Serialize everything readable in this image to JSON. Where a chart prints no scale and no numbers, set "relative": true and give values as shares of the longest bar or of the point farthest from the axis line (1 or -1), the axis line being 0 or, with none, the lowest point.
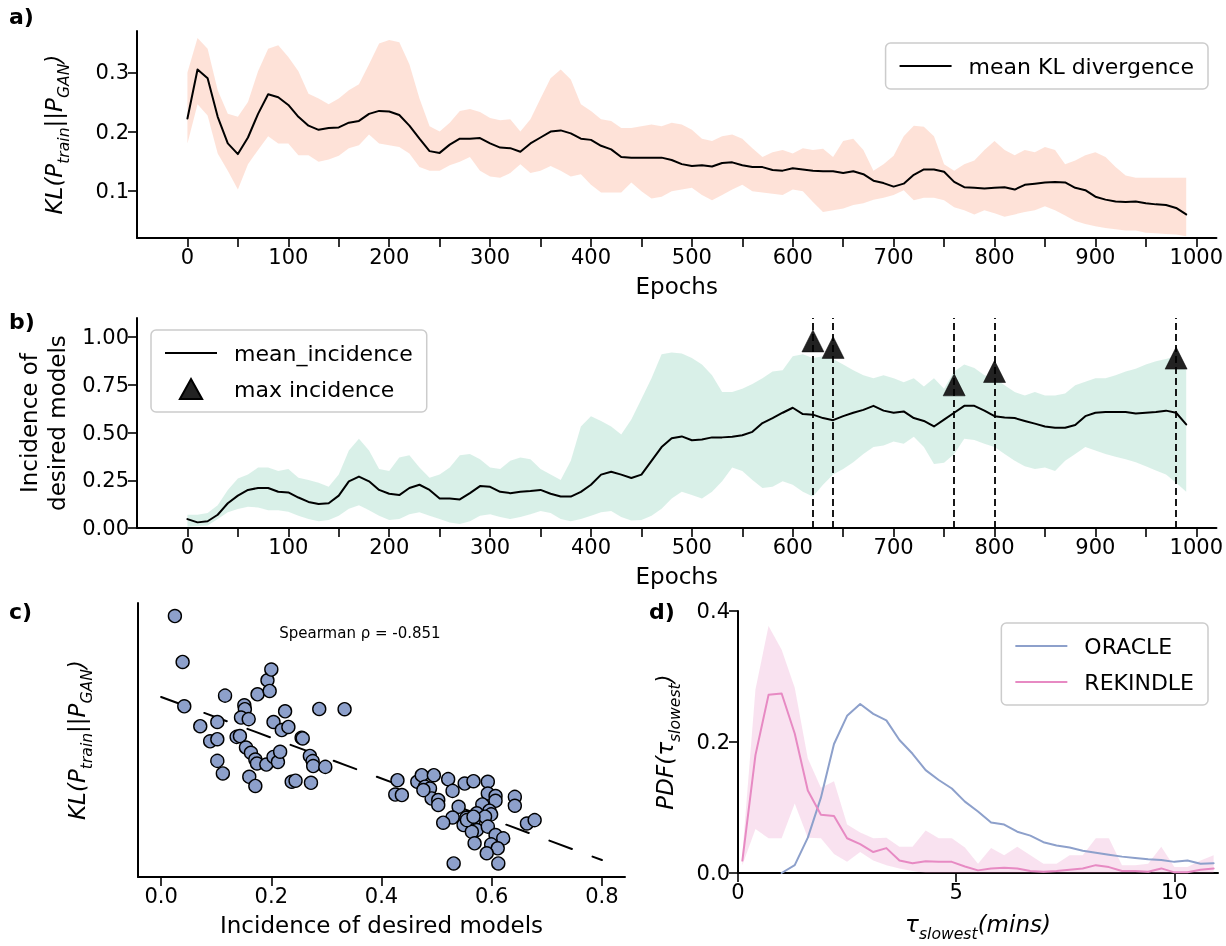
{
  "chart_data": [
    {
      "type": "line",
      "title": "a)",
      "xlabel": "Epochs",
      "ylabel": "KL(P$_{train}$||P$_{GAN}$)",
      "legend": "top right",
      "marker": "none",
      "xlim": [
        -50,
        1020
      ],
      "ylim": [
        0.02,
        0.37
      ],
      "xticks": [
        0,
        {
          "value": 50,
          "label": null
        },
        100,
        {
          "value": 150,
          "label": null
        },
        200,
        {
          "value": 250,
          "label": null
        },
        300,
        {
          "value": 350,
          "label": null
        },
        400,
        {
          "value": 450,
          "label": null
        },
        500,
        {
          "value": 550,
          "label": null
        },
        600,
        {
          "value": 650,
          "label": null
        },
        700,
        {
          "value": 750,
          "label": null
        },
        800,
        {
          "value": 850,
          "label": null
        },
        900,
        {
          "value": 950,
          "label": null
        },
        1000
      ],
      "yticks": [
        0.1,
        0.2,
        0.3
      ],
      "x": [
        0,
        10,
        20,
        30,
        40,
        50,
        60,
        70,
        80,
        90,
        100,
        110,
        120,
        130,
        140,
        150,
        160,
        170,
        180,
        190,
        200,
        210,
        220,
        230,
        240,
        250,
        260,
        270,
        280,
        290,
        300,
        310,
        320,
        330,
        340,
        350,
        360,
        370,
        380,
        390,
        400,
        410,
        420,
        430,
        440,
        450,
        460,
        470,
        480,
        490,
        500,
        510,
        520,
        530,
        540,
        550,
        560,
        570,
        580,
        590,
        600,
        610,
        620,
        630,
        640,
        650,
        660,
        670,
        680,
        690,
        700,
        710,
        720,
        730,
        740,
        750,
        760,
        770,
        780,
        790,
        800,
        810,
        820,
        830,
        840,
        850,
        860,
        870,
        880,
        890,
        900,
        910,
        920,
        930,
        940,
        950,
        960,
        970,
        980,
        990
      ],
      "series": [
        {
          "name": "mean KL divergence",
          "color": "#000000",
          "values": [
            0.222,
            0.305,
            0.29,
            0.225,
            0.18,
            0.162,
            0.19,
            0.23,
            0.263,
            0.258,
            0.245,
            0.225,
            0.21,
            0.203,
            0.206,
            0.207,
            0.215,
            0.218,
            0.23,
            0.235,
            0.234,
            0.228,
            0.21,
            0.188,
            0.167,
            0.164,
            0.178,
            0.188,
            0.188,
            0.189,
            0.18,
            0.173,
            0.172,
            0.166,
            0.18,
            0.19,
            0.2,
            0.202,
            0.197,
            0.188,
            0.186,
            0.176,
            0.17,
            0.157,
            0.156,
            0.156,
            0.156,
            0.156,
            0.152,
            0.145,
            0.142,
            0.143,
            0.141,
            0.147,
            0.148,
            0.143,
            0.14,
            0.14,
            0.135,
            0.134,
            0.138,
            0.136,
            0.134,
            0.133,
            0.133,
            0.13,
            0.133,
            0.128,
            0.117,
            0.113,
            0.107,
            0.112,
            0.127,
            0.136,
            0.136,
            0.132,
            0.115,
            0.106,
            0.105,
            0.104,
            0.105,
            0.106,
            0.102,
            0.11,
            0.112,
            0.114,
            0.115,
            0.114,
            0.105,
            0.101,
            0.09,
            0.085,
            0.082,
            0.081,
            0.082,
            0.079,
            0.077,
            0.076,
            0.071,
            0.06
          ],
          "upper": [
            0.3,
            0.358,
            0.34,
            0.27,
            0.23,
            0.225,
            0.25,
            0.302,
            0.34,
            0.346,
            0.326,
            0.302,
            0.264,
            0.256,
            0.246,
            0.256,
            0.27,
            0.28,
            0.314,
            0.349,
            0.355,
            0.351,
            0.314,
            0.256,
            0.209,
            0.2,
            0.215,
            0.235,
            0.238,
            0.233,
            0.223,
            0.219,
            0.221,
            0.2,
            0.221,
            0.256,
            0.29,
            0.305,
            0.288,
            0.246,
            0.235,
            0.221,
            0.218,
            0.206,
            0.206,
            0.209,
            0.212,
            0.209,
            0.215,
            0.212,
            0.203,
            0.188,
            0.184,
            0.192,
            0.195,
            0.188,
            0.172,
            0.157,
            0.165,
            0.169,
            0.163,
            0.172,
            0.169,
            0.171,
            0.157,
            0.184,
            0.188,
            0.169,
            0.134,
            0.145,
            0.159,
            0.192,
            0.21,
            0.208,
            0.192,
            0.145,
            0.134,
            0.145,
            0.151,
            0.169,
            0.184,
            0.169,
            0.16,
            0.169,
            0.165,
            0.174,
            0.169,
            0.145,
            0.151,
            0.16,
            0.165,
            0.157,
            0.14,
            0.126,
            0.122,
            0.122,
            0.122,
            0.122,
            0.122,
            0.122
          ],
          "lower": [
            0.18,
            0.246,
            0.227,
            0.163,
            0.134,
            0.102,
            0.145,
            0.169,
            0.192,
            0.18,
            0.18,
            0.16,
            0.16,
            0.149,
            0.153,
            0.159,
            0.172,
            0.177,
            0.195,
            0.18,
            0.177,
            0.174,
            0.163,
            0.14,
            0.134,
            0.134,
            0.143,
            0.149,
            0.157,
            0.134,
            0.124,
            0.122,
            0.13,
            0.145,
            0.13,
            0.134,
            0.142,
            0.134,
            0.124,
            0.128,
            0.11,
            0.097,
            0.097,
            0.097,
            0.114,
            0.099,
            0.087,
            0.09,
            0.099,
            0.102,
            0.105,
            0.093,
            0.084,
            0.093,
            0.102,
            0.11,
            0.099,
            0.097,
            0.095,
            0.093,
            0.102,
            0.099,
            0.081,
            0.064,
            0.067,
            0.07,
            0.076,
            0.079,
            0.085,
            0.088,
            0.093,
            0.101,
            0.084,
            0.088,
            0.088,
            0.084,
            0.072,
            0.067,
            0.06,
            0.067,
            0.062,
            0.056,
            0.06,
            0.064,
            0.067,
            0.074,
            0.067,
            0.058,
            0.049,
            0.044,
            0.04,
            0.037,
            0.035,
            0.033,
            0.033,
            0.029,
            0.028,
            0.027,
            0.026,
            0.023
          ]
        }
      ]
    },
    {
      "type": "line",
      "title": "b)",
      "xlabel": "Epochs",
      "ylabel": "Incidence of\ndesired models",
      "legend": "top left",
      "marker": "none",
      "xlim": [
        -50,
        1020
      ],
      "ylim": [
        0,
        1.1
      ],
      "xticks": [
        0,
        {
          "value": 50,
          "label": null
        },
        100,
        {
          "value": 150,
          "label": null
        },
        200,
        {
          "value": 250,
          "label": null
        },
        300,
        {
          "value": 350,
          "label": null
        },
        400,
        {
          "value": 450,
          "label": null
        },
        500,
        {
          "value": 550,
          "label": null
        },
        600,
        {
          "value": 650,
          "label": null
        },
        700,
        {
          "value": 750,
          "label": null
        },
        800,
        {
          "value": 850,
          "label": null
        },
        900,
        {
          "value": 950,
          "label": null
        },
        1000
      ],
      "yticks": [
        {
          "value": 0,
          "label": "0.00"
        },
        0.25,
        {
          "value": 0.5,
          "label": "0.50"
        },
        0.75,
        {
          "value": 1,
          "label": "1.00"
        }
      ],
      "x": [
        0,
        10,
        20,
        30,
        40,
        50,
        60,
        70,
        80,
        90,
        100,
        110,
        120,
        130,
        140,
        150,
        160,
        170,
        180,
        190,
        200,
        210,
        220,
        230,
        240,
        250,
        260,
        270,
        280,
        290,
        300,
        310,
        320,
        330,
        340,
        350,
        360,
        370,
        380,
        390,
        400,
        410,
        420,
        430,
        440,
        450,
        460,
        470,
        480,
        490,
        500,
        510,
        520,
        530,
        540,
        550,
        560,
        570,
        580,
        590,
        600,
        610,
        620,
        630,
        640,
        650,
        660,
        670,
        680,
        690,
        700,
        710,
        720,
        730,
        740,
        750,
        760,
        770,
        780,
        790,
        800,
        810,
        820,
        830,
        840,
        850,
        860,
        870,
        880,
        890,
        900,
        910,
        920,
        930,
        940,
        950,
        960,
        970,
        980,
        990
      ],
      "ref_lines": [
        {
          "axis": "x",
          "value": 620,
          "color": "#000000",
          "line_style": "dashed"
        },
        {
          "axis": "x",
          "value": 640,
          "color": "#000000",
          "line_style": "dashed"
        },
        {
          "axis": "x",
          "value": 760,
          "color": "#000000",
          "line_style": "dashed"
        },
        {
          "axis": "x",
          "value": 800,
          "color": "#000000",
          "line_style": "dashed"
        },
        {
          "axis": "x",
          "value": 980,
          "color": "#000000",
          "line_style": "dashed"
        }
      ],
      "series": [
        {
          "name": "mean_incidence",
          "color": "#000000",
          "values": [
            0.047,
            0.03,
            0.036,
            0.07,
            0.13,
            0.17,
            0.2,
            0.21,
            0.21,
            0.19,
            0.187,
            0.16,
            0.137,
            0.126,
            0.13,
            0.17,
            0.245,
            0.27,
            0.245,
            0.2,
            0.18,
            0.173,
            0.21,
            0.227,
            0.2,
            0.155,
            0.155,
            0.15,
            0.183,
            0.22,
            0.216,
            0.19,
            0.183,
            0.19,
            0.194,
            0.2,
            0.18,
            0.165,
            0.165,
            0.19,
            0.227,
            0.28,
            0.295,
            0.28,
            0.262,
            0.28,
            0.352,
            0.424,
            0.47,
            0.48,
            0.46,
            0.464,
            0.475,
            0.475,
            0.478,
            0.486,
            0.504,
            0.55,
            0.576,
            0.604,
            0.63,
            0.597,
            0.594,
            0.576,
            0.565,
            0.586,
            0.604,
            0.619,
            0.64,
            0.615,
            0.604,
            0.611,
            0.576,
            0.561,
            0.532,
            0.568,
            0.604,
            0.64,
            0.64,
            0.615,
            0.586,
            0.579,
            0.576,
            0.561,
            0.547,
            0.532,
            0.525,
            0.525,
            0.54,
            0.586,
            0.604,
            0.608,
            0.608,
            0.608,
            0.6,
            0.604,
            0.608,
            0.615,
            0.604,
            0.543
          ],
          "upper": [
            0.07,
            0.07,
            0.079,
            0.12,
            0.2,
            0.26,
            0.28,
            0.317,
            0.317,
            0.299,
            0.309,
            0.263,
            0.252,
            0.237,
            0.216,
            0.281,
            0.406,
            0.468,
            0.406,
            0.309,
            0.299,
            0.37,
            0.381,
            0.317,
            0.263,
            0.281,
            0.317,
            0.381,
            0.388,
            0.36,
            0.317,
            0.309,
            0.352,
            0.37,
            0.36,
            0.309,
            0.281,
            0.252,
            0.352,
            0.532,
            0.586,
            0.561,
            0.532,
            0.49,
            0.568,
            0.676,
            0.784,
            0.91,
            0.92,
            0.914,
            0.89,
            0.856,
            0.8,
            0.712,
            0.712,
            0.73,
            0.755,
            0.784,
            0.82,
            0.827,
            0.9,
            0.91,
            0.89,
            0.9,
            0.885,
            0.856,
            0.827,
            0.8,
            0.784,
            0.8,
            0.784,
            0.763,
            0.784,
            0.741,
            0.784,
            0.73,
            0.82,
            0.856,
            0.838,
            0.8,
            0.784,
            0.748,
            0.712,
            0.694,
            0.712,
            0.694,
            0.694,
            0.705,
            0.748,
            0.766,
            0.784,
            0.784,
            0.8,
            0.82,
            0.834,
            0.856,
            0.874,
            0.885,
            0.9,
            0.827
          ],
          "lower": [
            0.007,
            0.011,
            0.014,
            0.047,
            0.083,
            0.1,
            0.112,
            0.108,
            0.094,
            0.094,
            0.086,
            0.065,
            0.047,
            0.036,
            0.043,
            0.065,
            0.101,
            0.119,
            0.094,
            0.065,
            0.043,
            0.047,
            0.072,
            0.083,
            0.065,
            0.047,
            0.029,
            0.022,
            0.036,
            0.065,
            0.072,
            0.058,
            0.047,
            0.058,
            0.072,
            0.09,
            0.079,
            0.047,
            0.036,
            0.047,
            0.065,
            0.083,
            0.09,
            0.058,
            0.04,
            0.043,
            0.065,
            0.101,
            0.155,
            0.19,
            0.173,
            0.155,
            0.19,
            0.245,
            0.317,
            0.299,
            0.252,
            0.21,
            0.216,
            0.245,
            0.227,
            0.19,
            0.165,
            0.227,
            0.281,
            0.309,
            0.345,
            0.388,
            0.424,
            0.432,
            0.453,
            0.442,
            0.478,
            0.424,
            0.335,
            0.342,
            0.388,
            0.468,
            0.461,
            0.442,
            0.424,
            0.388,
            0.352,
            0.324,
            0.31,
            0.317,
            0.299,
            0.352,
            0.388,
            0.424,
            0.406,
            0.388,
            0.374,
            0.36,
            0.345,
            0.324,
            0.302,
            0.28,
            0.237,
            0.19
          ]
        },
        {
          "name": "max incidence",
          "type": "scatter",
          "marker": "triangle",
          "color": "#222222",
          "x": [
            620,
            640,
            760,
            800,
            980
          ],
          "values": [
            0.98,
            0.946,
            0.75,
            0.82,
            0.89
          ]
        }
      ]
    },
    {
      "type": "scatter",
      "title": "c)",
      "xlabel": "Incidence of desired models",
      "ylabel": "KL(P$_{train}$||P$_{GAN}$)",
      "marker": "circle",
      "relative": true,
      "annotations": [
        "Spearman ρ = -0.851"
      ],
      "xlim": [
        -0.042,
        0.842
      ],
      "xticks": [
        {
          "value": 0,
          "label": "0.0"
        },
        0.2,
        0.4,
        0.6,
        0.8
      ],
      "series": [
        {
          "color": "#8da0cb",
          "x": [
            0.025,
            0.039,
            0.042,
            0.071,
            0.089,
            0.102,
            0.102,
            0.102,
            0.112,
            0.116,
            0.137,
            0.143,
            0.151,
            0.152,
            0.145,
            0.159,
            0.154,
            0.163,
            0.171,
            0.174,
            0.191,
            0.16,
            0.171,
            0.175,
            0.193,
            0.197,
            0.2,
            0.204,
            0.204,
            0.212,
            0.216,
            0.219,
            0.225,
            0.231,
            0.237,
            0.244,
            0.255,
            0.257,
            0.27,
            0.275,
            0.276,
            0.298,
            0.272,
            0.287,
            0.333,
            0.429,
            0.425,
            0.437,
            0.465,
            0.473,
            0.479,
            0.488,
            0.495,
            0.491,
            0.503,
            0.503,
            0.521,
            0.529,
            0.54,
            0.551,
            0.567,
            0.593,
            0.593,
            0.607,
            0.607,
            0.583,
            0.573,
            0.596,
            0.599,
            0.588,
            0.554,
            0.549,
            0.567,
            0.573,
            0.564,
            0.529,
            0.512,
            0.593,
            0.607,
            0.621,
            0.599,
            0.611,
            0.591,
            0.569,
            0.642,
            0.642,
            0.664,
            0.678,
            0.531,
            0.612,
            0.476,
            0.555,
            0.567
          ],
          "values": [
            1.0,
            0.824,
            0.654,
            0.578,
            0.52,
            0.594,
            0.528,
            0.445,
            0.397,
            0.695,
            0.537,
            0.54,
            0.658,
            0.643,
            0.611,
            0.605,
            0.496,
            0.476,
            0.45,
            0.435,
            0.431,
            0.384,
            0.349,
            0.7,
            0.754,
            0.713,
            0.795,
            0.594,
            0.46,
            0.441,
            0.48,
            0.563,
            0.635,
            0.575,
            0.365,
            0.369,
            0.534,
            0.531,
            0.464,
            0.444,
            0.425,
            0.422,
            0.361,
            0.644,
            0.643,
            0.371,
            0.316,
            0.314,
            0.365,
            0.39,
            0.346,
            0.339,
            0.39,
            0.301,
            0.295,
            0.276,
            0.375,
            0.33,
            0.269,
            0.358,
            0.367,
            0.365,
            0.32,
            0.31,
            0.292,
            0.278,
            0.244,
            0.254,
            0.24,
            0.231,
            0.227,
            0.199,
            0.212,
            0.18,
            0.173,
            0.228,
            0.208,
            0.193,
            0.161,
            0.148,
            0.125,
            0.11,
            0.091,
            0.129,
            0.307,
            0.273,
            0.205,
            0.218,
            0.052,
            0.052,
            0.333,
            0.218,
            0.231
          ]
        },
        {
          "type": "line",
          "color": "#000000",
          "line_style": "dashed",
          "marker": "none",
          "x": [
            0,
            0.8
          ],
          "values": [
            0.69,
            0.065
          ]
        }
      ]
    },
    {
      "type": "line",
      "title": "d)",
      "xlabel": "τ$_{slowest}$(mins)",
      "ylabel": "PDF(τ$_{slowest}$)",
      "legend": "top right",
      "marker": "none",
      "xlim": [
        0,
        11
      ],
      "ylim": [
        0,
        0.4
      ],
      "xticks": [
        0,
        5,
        10
      ],
      "yticks": [
        {
          "value": 0,
          "label": "0.0"
        },
        0.2,
        0.4
      ],
      "series": [
        {
          "name": "ORACLE",
          "color": "#8da0cb",
          "x": [
            1,
            1.3,
            1.6,
            1.9,
            2.2,
            2.5,
            2.8,
            3.1,
            3.4,
            3.7,
            4,
            4.3,
            4.6,
            4.9,
            5.2,
            5.5,
            5.8,
            6.1,
            6.4,
            6.7,
            7,
            7.3,
            7.6,
            7.9,
            8.2,
            8.5,
            8.8,
            9.1,
            9.4,
            9.7,
            10,
            10.3,
            10.6,
            10.9
          ],
          "values": [
            0,
            0.012,
            0.054,
            0.115,
            0.197,
            0.24,
            0.258,
            0.243,
            0.233,
            0.203,
            0.182,
            0.157,
            0.142,
            0.129,
            0.109,
            0.094,
            0.077,
            0.074,
            0.063,
            0.057,
            0.047,
            0.042,
            0.039,
            0.034,
            0.031,
            0.028,
            0.025,
            0.023,
            0.021,
            0.02,
            0.017,
            0.019,
            0.014,
            0.015
          ]
        },
        {
          "name": "REKINDLE",
          "color": "#e78ac3",
          "x": [
            0.1,
            0.4,
            0.7,
            1,
            1.3,
            1.6,
            1.9,
            2.2,
            2.5,
            2.8,
            3.1,
            3.4,
            3.7,
            4,
            4.3,
            4.6,
            4.9,
            5.2,
            5.5,
            5.8,
            6.1,
            6.4,
            6.7,
            7,
            7.3,
            7.6,
            7.9,
            8.2,
            8.5,
            8.8,
            9.1,
            9.4,
            9.7,
            10,
            10.3,
            10.6,
            10.9
          ],
          "values": [
            0.019,
            0.18,
            0.272,
            0.274,
            0.213,
            0.126,
            0.089,
            0.087,
            0.053,
            0.044,
            0.032,
            0.038,
            0.019,
            0.015,
            0.018,
            0.017,
            0.017,
            0.01,
            0.004,
            0.007,
            0.008,
            0.007,
            0.003,
            0.002,
            0.003,
            0.005,
            0.007,
            0.012,
            0.009,
            0.003,
            0.003,
            0.002,
            0.007,
            0.001,
            0.001,
            0.005,
            0.007
          ],
          "upper": [
            0.029,
            0.28,
            0.377,
            0.341,
            0.283,
            0.175,
            0.13,
            0.14,
            0.074,
            0.062,
            0.053,
            0.054,
            0.04,
            0.04,
            0.065,
            0.053,
            0.053,
            0.039,
            0.014,
            0.038,
            0.027,
            0.04,
            0.027,
            0.014,
            0.014,
            0.027,
            0.027,
            0.053,
            0.053,
            0.012,
            0.012,
            0.014,
            0.04,
            0.009,
            0.009,
            0.019,
            0.027
          ],
          "lower": [
            0.012,
            0.067,
            0.053,
            0.053,
            0.106,
            0.054,
            0.053,
            0.029,
            0.017,
            0.032,
            0.019,
            0.012,
            0.007,
            0.003,
            0,
            0,
            0,
            0,
            0,
            0,
            0,
            0,
            0,
            0,
            0,
            0,
            0,
            0,
            0,
            0,
            0,
            0,
            0,
            0,
            0,
            0,
            0
          ]
        }
      ]
    }
  ]
}
